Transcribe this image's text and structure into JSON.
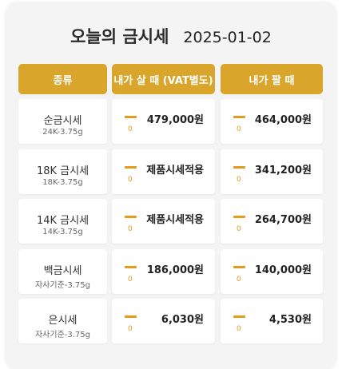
{
  "header": {
    "title": "오늘의 금시세",
    "date": "2025-01-02"
  },
  "columns": [
    "종류",
    "내가 살 때 (VAT별도)",
    "내가 팔 때"
  ],
  "rows": [
    {
      "name": "순금시세",
      "unit": "24K-3.75g",
      "buy_change": "0",
      "buy": "479,000원",
      "sell_change": "0",
      "sell": "464,000원"
    },
    {
      "name": "18K 금시세",
      "unit": "18K-3.75g",
      "buy_change": "0",
      "buy": "제품시세적용",
      "sell_change": "0",
      "sell": "341,200원"
    },
    {
      "name": "14K 금시세",
      "unit": "14K-3.75g",
      "buy_change": "0",
      "buy": "제품시세적용",
      "sell_change": "0",
      "sell": "264,700원"
    },
    {
      "name": "백금시세",
      "unit": "자사기준-3.75g",
      "buy_change": "0",
      "buy": "186,000원",
      "sell_change": "0",
      "sell": "140,000원"
    },
    {
      "name": "은시세",
      "unit": "자사기준-3.75g",
      "buy_change": "0",
      "buy": "6,030원",
      "sell_change": "0",
      "sell": "4,530원"
    }
  ],
  "colors": {
    "accent": "#d9a52a",
    "change_indicator": "#e79a1c"
  },
  "icons": {
    "change": "minus-dash-icon"
  }
}
